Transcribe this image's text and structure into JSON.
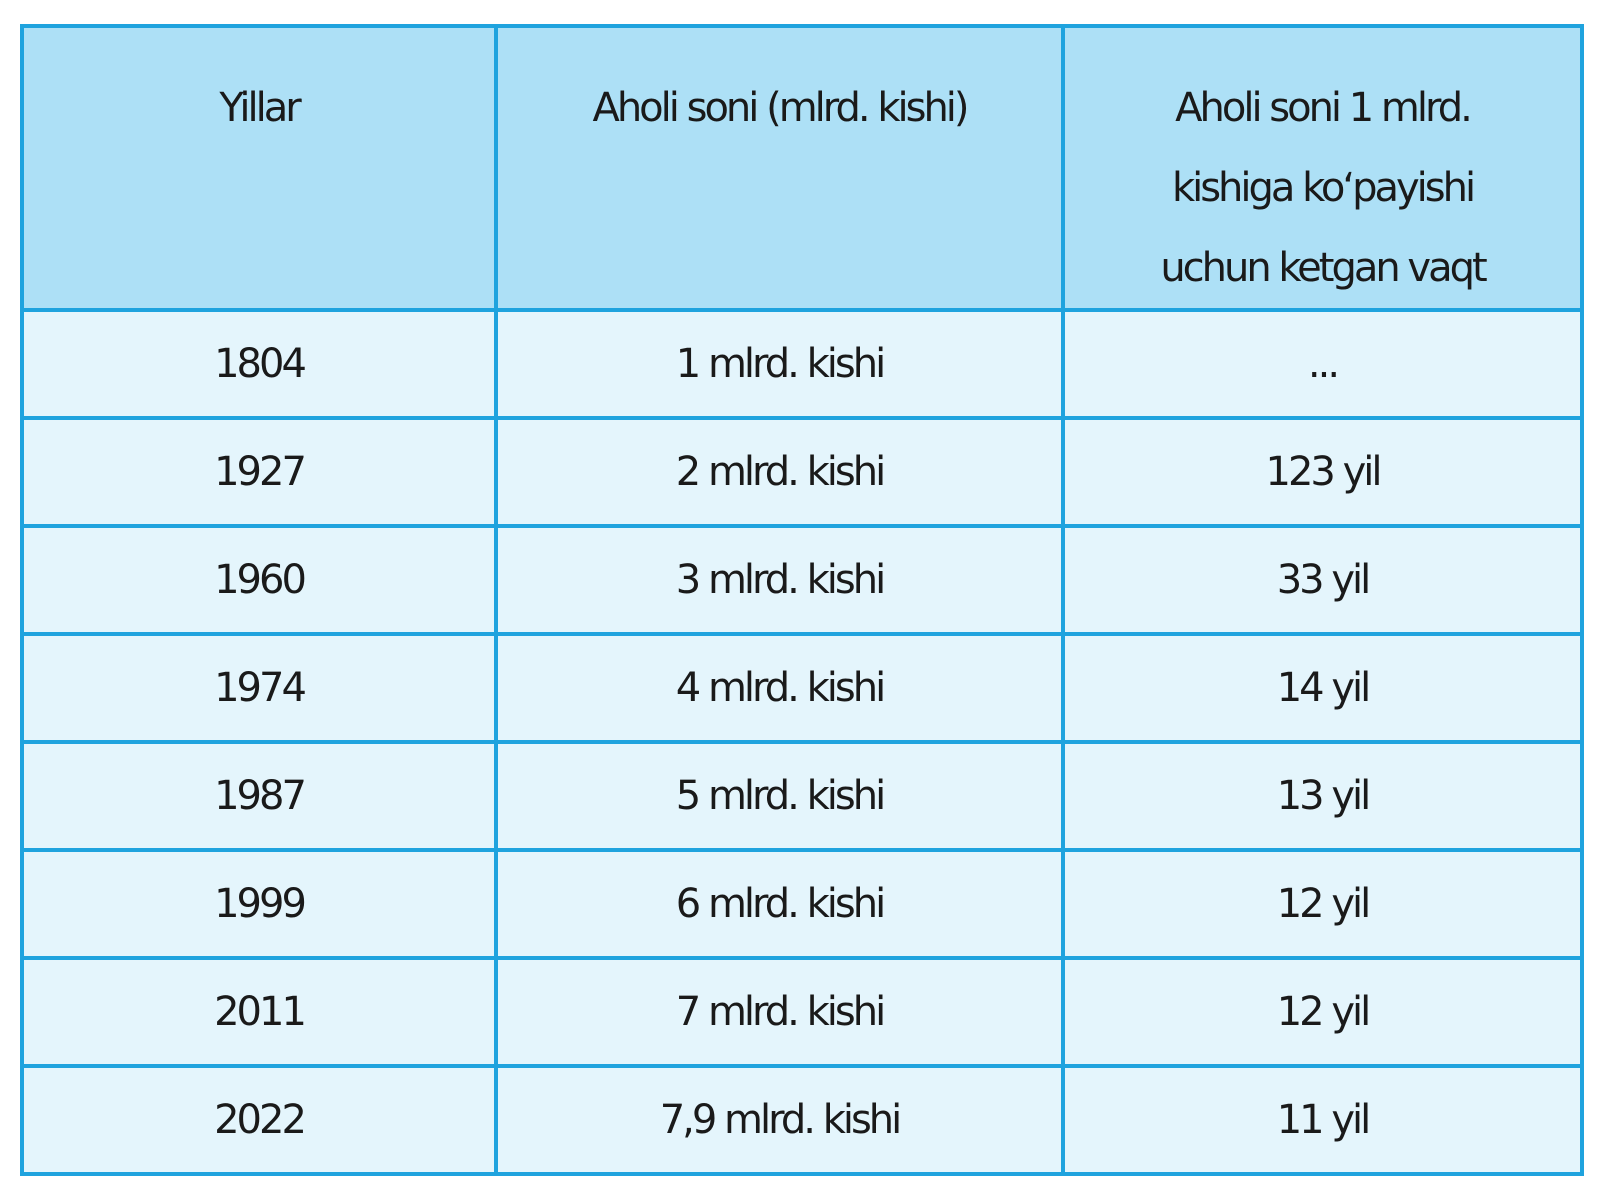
{
  "table": {
    "headers": [
      "Yillar",
      "Aholi soni (mlrd. kishi)",
      "Aholi soni 1 mlrd. kishiga ko‘payishi uchun ketgan vaqt"
    ],
    "rows": [
      [
        "1804",
        "1 mlrd. kishi",
        "..."
      ],
      [
        "1927",
        "2 mlrd. kishi",
        "123 yil"
      ],
      [
        "1960",
        "3 mlrd. kishi",
        "33 yil"
      ],
      [
        "1974",
        "4 mlrd. kishi",
        "14 yil"
      ],
      [
        "1987",
        "5 mlrd. kishi",
        "13 yil"
      ],
      [
        "1999",
        "6 mlrd. kishi",
        "12 yil"
      ],
      [
        "2011",
        "7 mlrd. kishi",
        "12 yil"
      ],
      [
        "2022",
        "7,9 mlrd. kishi",
        "11 yil"
      ]
    ]
  }
}
